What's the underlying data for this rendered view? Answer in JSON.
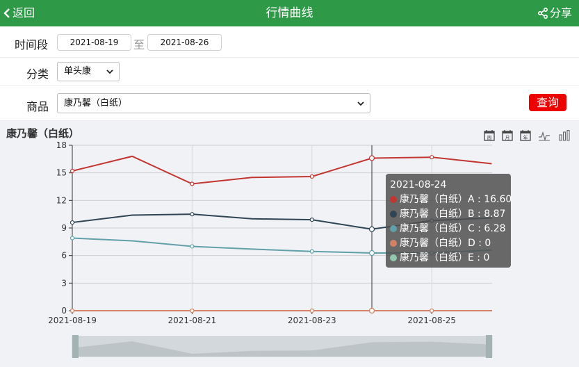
{
  "header": {
    "back_label": "返回",
    "title": "行情曲线",
    "share_label": "分享"
  },
  "filters": {
    "period_label": "时间段",
    "date_from": "2021-08-19",
    "date_sep": "至",
    "date_to": "2021-08-26",
    "category_label": "分类",
    "category_value": "单头康",
    "product_label": "商品",
    "product_value": "康乃馨（白纸）",
    "query_label": "查询"
  },
  "colors": {
    "header": "#2e9a47",
    "query": "#ee0000"
  },
  "toolbar_icons": [
    "calendar-week-icon",
    "calendar-month-icon",
    "calendar-year-icon",
    "line-chart-icon",
    "bar-chart-icon"
  ],
  "toolbar_labels": [
    "周",
    "月",
    "年"
  ],
  "chart_data": {
    "type": "line",
    "title": "康乃馨（白纸）",
    "x": [
      "2021-08-19",
      "2021-08-20",
      "2021-08-21",
      "2021-08-22",
      "2021-08-23",
      "2021-08-24",
      "2021-08-25",
      "2021-08-26"
    ],
    "x_tick_labels": [
      "2021-08-19",
      "2021-08-21",
      "2021-08-23",
      "2021-08-25"
    ],
    "y_ticks": [
      0,
      3,
      6,
      9,
      12,
      15,
      18
    ],
    "ylim": [
      0,
      18
    ],
    "grid": true,
    "series": [
      {
        "name": "康乃馨（白纸）A",
        "color": "#c23531",
        "values": [
          15.2,
          16.8,
          13.8,
          14.5,
          14.6,
          16.6,
          16.7,
          16.0
        ]
      },
      {
        "name": "康乃馨（白纸）B",
        "color": "#2f4554",
        "values": [
          9.6,
          10.4,
          10.5,
          10.0,
          9.9,
          8.87,
          9.8,
          10.1
        ]
      },
      {
        "name": "康乃馨（白纸）C",
        "color": "#61a0a8",
        "values": [
          7.9,
          7.6,
          7.0,
          6.7,
          6.45,
          6.28,
          6.3,
          6.6
        ]
      },
      {
        "name": "康乃馨（白纸）D",
        "color": "#d48265",
        "values": [
          0,
          0,
          0,
          0,
          0,
          0,
          0,
          0
        ]
      },
      {
        "name": "康乃馨（白纸）E",
        "color": "#91c7ae",
        "values": [
          0,
          0,
          0,
          0,
          0,
          0,
          0,
          0
        ]
      }
    ],
    "tooltip": {
      "date": "2021-08-24",
      "rows": [
        {
          "name": "康乃馨（白纸）A",
          "value": "16.60",
          "color": "#c23531"
        },
        {
          "name": "康乃馨（白纸）B",
          "value": "8.87",
          "color": "#2f4554"
        },
        {
          "name": "康乃馨（白纸）C",
          "value": "6.28",
          "color": "#61a0a8"
        },
        {
          "name": "康乃馨（白纸）D",
          "value": "0",
          "color": "#d48265"
        },
        {
          "name": "康乃馨（白纸）E",
          "value": "0",
          "color": "#91c7ae"
        }
      ]
    },
    "datazoom": {
      "start": 0,
      "end": 1
    }
  }
}
